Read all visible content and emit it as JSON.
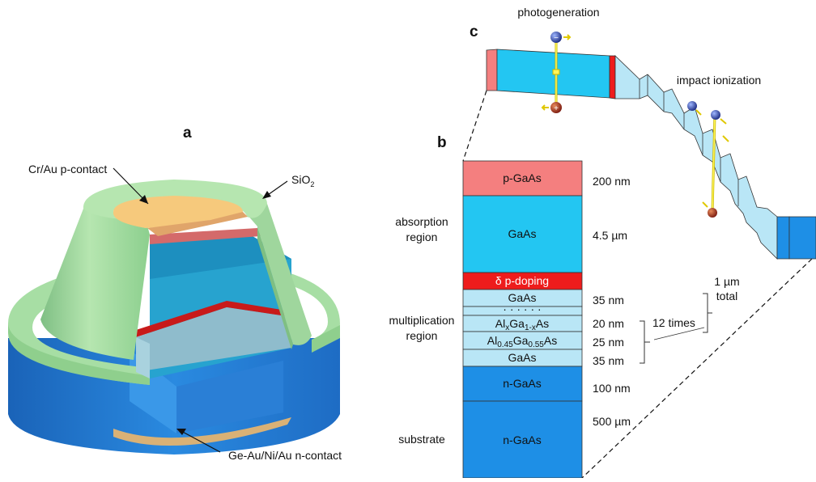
{
  "panels": {
    "a": "a",
    "b": "b",
    "c": "c"
  },
  "device_labels": {
    "p_contact": "Cr/Au p-contact",
    "sio2_main": "SiO",
    "sio2_sub": "2",
    "n_contact": "Ge-Au/Ni/Au n-contact"
  },
  "regions": {
    "absorption_line1": "absorption",
    "absorption_line2": "region",
    "multiplication_line1": "multiplication",
    "multiplication_line2": "region",
    "substrate": "substrate"
  },
  "layers": {
    "p_gaas": "p-GaAs",
    "gaas_abs": "GaAs",
    "delta": "δ p-doping",
    "gaas_35_top": "GaAs",
    "dots": "· · · · · ·",
    "algaas_al": "Al",
    "algaas_x": "x",
    "algaas_ga": "Ga",
    "algaas_1mx": "1-x",
    "algaas_as": "As",
    "al045_al": "Al",
    "al045_sub1": "0.45",
    "al045_ga": "Ga",
    "al045_sub2": "0.55",
    "al045_as": "As",
    "gaas_35_bot": "GaAs",
    "n_gaas_100": "n-GaAs",
    "n_gaas_sub": "n-GaAs"
  },
  "thicknesses": {
    "p_gaas": "200 nm",
    "gaas_abs": "4.5 µm",
    "gaas_35_top": "35 nm",
    "algaas": "20 nm",
    "al045": "25 nm",
    "gaas_35_bot": "35 nm",
    "n_gaas_100": "100 nm",
    "n_gaas_sub": "500 µm"
  },
  "annotations": {
    "repeat": "12 times",
    "total_line1": "1 µm",
    "total_line2": "total"
  },
  "band_diagram": {
    "photogeneration": "photogeneration",
    "impact_ionization": "impact ionization",
    "minus": "−",
    "plus": "+"
  },
  "colors": {
    "p_gaas": "#f47f7f",
    "gaas_abs": "#23c6f2",
    "delta": "#ee1c1c",
    "multiplication": "#b9e6f6",
    "n_gaas": "#1e8fe6",
    "sio2": "#b9ecb0",
    "contact_gold": "#f6c97c"
  }
}
